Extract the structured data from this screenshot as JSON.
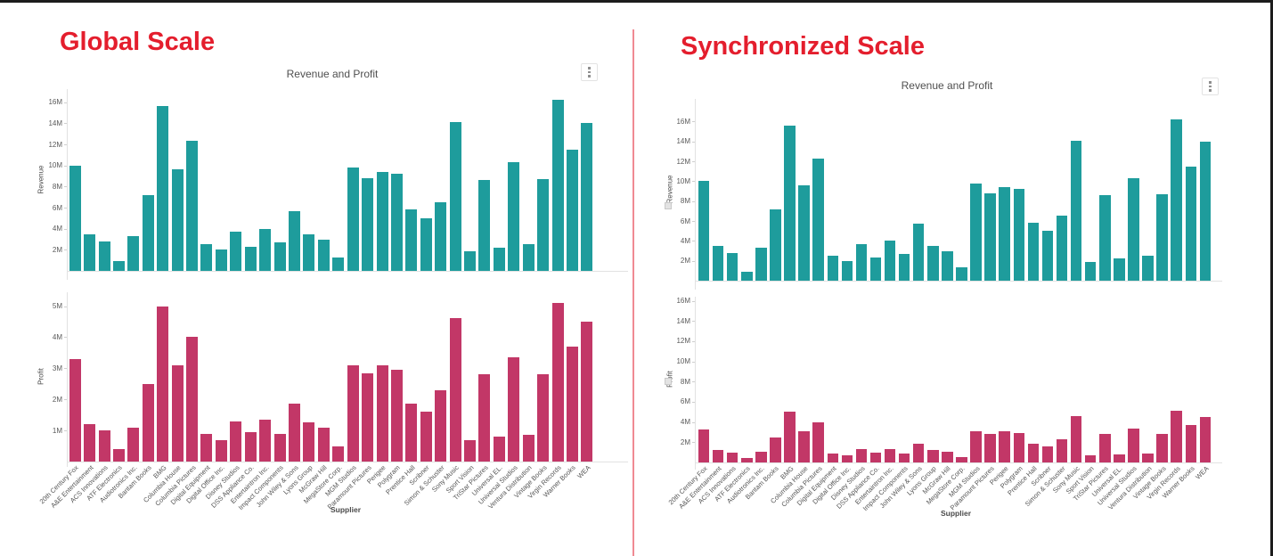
{
  "panels": [
    {
      "heading": "Global Scale"
    },
    {
      "heading": "Synchronized Scale"
    }
  ],
  "colors": {
    "heading": "#e41e2d",
    "divider": "#f08a93",
    "revenue_bar": "#1e9c9c",
    "profit_bar": "#c23767",
    "axis_line": "#e2e2e2",
    "tick_text": "#595959",
    "title_text": "#4f4f4f"
  },
  "icons": {
    "chart_menu": "kebab-menu (3 vertical dots)",
    "axis_sync": "small gray lock/sync square"
  },
  "chart_data": [
    {
      "type": "bar",
      "title": "Revenue and Profit",
      "xlabel": "Supplier",
      "legend": "none",
      "grid": "off",
      "categories": [
        "20th Century Fox",
        "A&E Entertainment",
        "ACS Innovations",
        "ATF Electronics",
        "Audiotronics Inc.",
        "Bantam Books",
        "BMG",
        "Columbia House",
        "Columbia Pictures",
        "Digital Equipment",
        "Digital Office Inc.",
        "Disney Studios",
        "DSS Appliance Co.",
        "Entertaintron Inc.",
        "Impact Components",
        "John Wiley & Sons",
        "Lyons Group",
        "McGraw Hill",
        "MegaStore Corp.",
        "MGM Studios",
        "Paramount Pictures",
        "Perigee",
        "Polygram",
        "Prentice Hall",
        "Scribner",
        "Simon & Schuster",
        "Sony Music",
        "Sport Vision",
        "TriStar Pictures",
        "Universal EL.",
        "Universal Studios",
        "Ventura Distribution",
        "Vintage Books",
        "Virgin Records",
        "Warner Books",
        "WEA"
      ],
      "series": [
        {
          "name": "Revenue",
          "unit": "M",
          "color": "#1e9c9c",
          "ylim": [
            0,
            17
          ],
          "yticks": [
            "2M",
            "4M",
            "6M",
            "8M",
            "10M",
            "12M",
            "14M",
            "16M"
          ],
          "values": [
            10.0,
            3.5,
            2.8,
            0.9,
            3.3,
            7.2,
            15.6,
            9.6,
            12.3,
            2.5,
            2.0,
            3.7,
            2.3,
            4.0,
            2.7,
            5.7,
            3.5,
            3.0,
            1.3,
            9.8,
            8.8,
            9.4,
            9.2,
            5.8,
            5.0,
            6.5,
            14.1,
            1.9,
            8.6,
            2.2,
            10.3,
            2.5,
            8.7,
            16.2,
            11.5,
            14.0
          ]
        },
        {
          "name": "Profit",
          "unit": "M",
          "color": "#c23767",
          "ylim": [
            0,
            5.6
          ],
          "yticks": [
            "1M",
            "2M",
            "3M",
            "4M",
            "5M"
          ],
          "values": [
            3.3,
            1.2,
            1.0,
            0.4,
            1.1,
            2.5,
            5.0,
            3.1,
            4.0,
            0.9,
            0.7,
            1.3,
            0.95,
            1.35,
            0.9,
            1.85,
            1.25,
            1.1,
            0.5,
            3.1,
            2.85,
            3.1,
            2.95,
            1.85,
            1.6,
            2.3,
            4.6,
            0.7,
            2.8,
            0.8,
            3.35,
            0.85,
            2.8,
            5.1,
            3.7,
            4.5
          ]
        }
      ]
    },
    {
      "type": "bar",
      "title": "Revenue and Profit",
      "xlabel": "Supplier",
      "legend": "none",
      "grid": "off",
      "synchronized_axes": true,
      "categories": [
        "20th Century Fox",
        "A&E Entertainment",
        "ACS Innovations",
        "ATF Electronics",
        "Audiotronics Inc.",
        "Bantam Books",
        "BMG",
        "Columbia House",
        "Columbia Pictures",
        "Digital Equipment",
        "Digital Office Inc.",
        "Disney Studios",
        "DSS Appliance Co.",
        "Entertaintron Inc.",
        "Impact Components",
        "John Wiley & Sons",
        "Lyons Group",
        "McGraw Hill",
        "MegaStore Corp.",
        "MGM Studios",
        "Paramount Pictures",
        "Perigee",
        "Polygram",
        "Prentice Hall",
        "Scribner",
        "Simon & Schuster",
        "Sony Music",
        "Sport Vision",
        "TriStar Pictures",
        "Universal EL.",
        "Universal Studios",
        "Ventura Distribution",
        "Vintage Books",
        "Virgin Records",
        "Warner Books",
        "WEA"
      ],
      "series": [
        {
          "name": "Revenue",
          "unit": "M",
          "color": "#1e9c9c",
          "ylim": [
            0,
            17.7
          ],
          "yticks": [
            "2M",
            "4M",
            "6M",
            "8M",
            "10M",
            "12M",
            "14M",
            "16M"
          ],
          "values": [
            10.0,
            3.5,
            2.8,
            0.9,
            3.3,
            7.2,
            15.6,
            9.6,
            12.3,
            2.5,
            2.0,
            3.7,
            2.3,
            4.0,
            2.7,
            5.7,
            3.5,
            3.0,
            1.3,
            9.8,
            8.8,
            9.4,
            9.2,
            5.8,
            5.0,
            6.5,
            14.1,
            1.9,
            8.6,
            2.2,
            10.3,
            2.5,
            8.7,
            16.2,
            11.5,
            14.0
          ]
        },
        {
          "name": "Profit",
          "unit": "M",
          "color": "#c23767",
          "ylim": [
            0,
            17.7
          ],
          "yticks": [
            "2M",
            "4M",
            "6M",
            "8M",
            "10M",
            "12M",
            "14M",
            "16M"
          ],
          "values": [
            3.3,
            1.2,
            1.0,
            0.4,
            1.1,
            2.5,
            5.0,
            3.1,
            4.0,
            0.9,
            0.7,
            1.3,
            0.95,
            1.35,
            0.9,
            1.85,
            1.25,
            1.1,
            0.5,
            3.1,
            2.85,
            3.1,
            2.95,
            1.85,
            1.6,
            2.3,
            4.6,
            0.7,
            2.8,
            0.8,
            3.35,
            0.85,
            2.8,
            5.1,
            3.7,
            4.5
          ]
        }
      ]
    }
  ]
}
